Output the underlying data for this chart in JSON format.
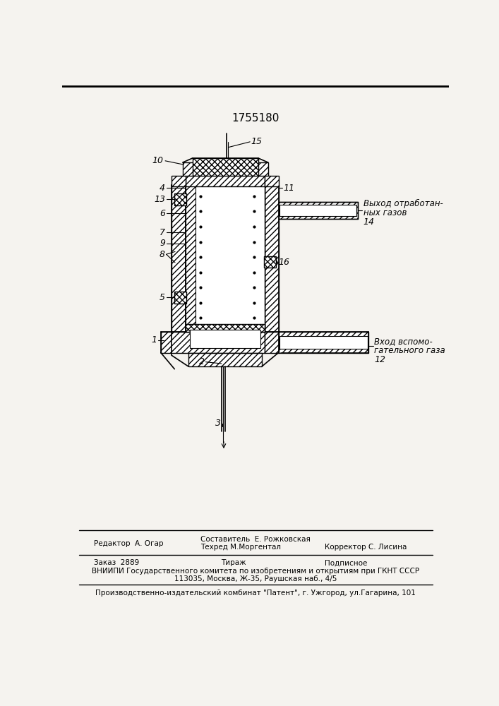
{
  "title": "1755180",
  "bg_color": "#f5f3ef",
  "footer_line1_left": "Редактор  А. Огар",
  "footer_line1_center_top": "Составитель  Е. Рожковская",
  "footer_line1_center_bot": "Техред М.Моргентал",
  "footer_line1_right": "Корректор С. Лисина",
  "footer_line2_left": "Заказ  2889",
  "footer_line2_center": "Тираж",
  "footer_line2_right": "Подписное",
  "footer_line3": "ВНИИПИ Государственного комитета по изобретениям и открытиям при ГКНТ СССР",
  "footer_line4": "113035, Москва, Ж-35, Раушская наб., 4/5",
  "footer_line5": "Производственно-издательский комбинат \"Патент\", г. Ужгород, ул.Гагарина, 101",
  "label_outlet": "Выход отработан-\nных газов\n14",
  "label_inlet_top": "Вход вспомо-",
  "label_inlet_bot": "гательного газа",
  "label_inlet_num": "12"
}
